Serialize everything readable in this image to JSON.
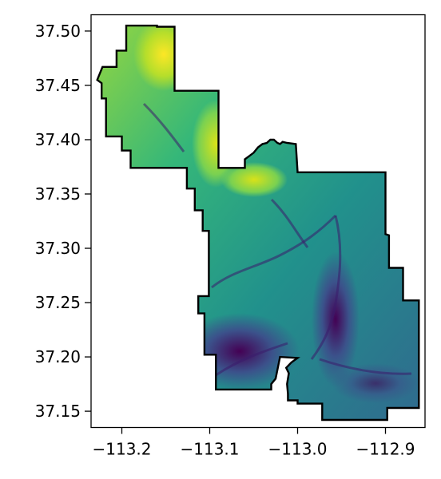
{
  "chart_data": {
    "type": "heatmap",
    "title": "",
    "xlabel": "",
    "ylabel": "",
    "colormap": "viridis",
    "xlim": [
      -113.235,
      -112.855
    ],
    "ylim": [
      37.135,
      37.515
    ],
    "x_ticks": [
      {
        "value": -113.2,
        "label": "−113.2"
      },
      {
        "value": -113.1,
        "label": "−113.1"
      },
      {
        "value": -113.0,
        "label": "−113.0"
      },
      {
        "value": -112.9,
        "label": "−112.9"
      }
    ],
    "y_ticks": [
      {
        "value": 37.5,
        "label": "37.50"
      },
      {
        "value": 37.45,
        "label": "37.45"
      },
      {
        "value": 37.4,
        "label": "37.40"
      },
      {
        "value": 37.35,
        "label": "37.35"
      },
      {
        "value": 37.3,
        "label": "37.30"
      },
      {
        "value": 37.25,
        "label": "37.25"
      },
      {
        "value": 37.2,
        "label": "37.20"
      },
      {
        "value": 37.15,
        "label": "37.15"
      }
    ],
    "boundary_outline_color": "#000000",
    "boundary": [
      [
        -113.195,
        37.505
      ],
      [
        -113.16,
        37.505
      ],
      [
        -113.16,
        37.504
      ],
      [
        -113.14,
        37.504
      ],
      [
        -113.14,
        37.445
      ],
      [
        -113.09,
        37.445
      ],
      [
        -113.09,
        37.374
      ],
      [
        -113.06,
        37.374
      ],
      [
        -113.06,
        37.382
      ],
      [
        -113.055,
        37.385
      ],
      [
        -113.05,
        37.388
      ],
      [
        -113.045,
        37.393
      ],
      [
        -113.04,
        37.396
      ],
      [
        -113.035,
        37.397
      ],
      [
        -113.031,
        37.4
      ],
      [
        -113.027,
        37.4
      ],
      [
        -113.023,
        37.397
      ],
      [
        -113.02,
        37.396
      ],
      [
        -113.017,
        37.398
      ],
      [
        -113.012,
        37.397
      ],
      [
        -113.002,
        37.396
      ],
      [
        -113.0,
        37.37
      ],
      [
        -112.9,
        37.37
      ],
      [
        -112.9,
        37.313
      ],
      [
        -112.896,
        37.312
      ],
      [
        -112.896,
        37.282
      ],
      [
        -112.88,
        37.282
      ],
      [
        -112.88,
        37.252
      ],
      [
        -112.862,
        37.252
      ],
      [
        -112.862,
        37.153
      ],
      [
        -112.898,
        37.153
      ],
      [
        -112.898,
        37.142
      ],
      [
        -112.972,
        37.142
      ],
      [
        -112.972,
        37.157
      ],
      [
        -113.0,
        37.157
      ],
      [
        -113.0,
        37.16
      ],
      [
        -113.011,
        37.16
      ],
      [
        -113.011,
        37.166
      ],
      [
        -113.012,
        37.175
      ],
      [
        -113.01,
        37.185
      ],
      [
        -113.013,
        37.19
      ],
      [
        -113.007,
        37.195
      ],
      [
        -113.0,
        37.199
      ],
      [
        -113.02,
        37.2
      ],
      [
        -113.025,
        37.18
      ],
      [
        -113.03,
        37.175
      ],
      [
        -113.03,
        37.17
      ],
      [
        -113.093,
        37.17
      ],
      [
        -113.093,
        37.202
      ],
      [
        -113.106,
        37.202
      ],
      [
        -113.106,
        37.24
      ],
      [
        -113.113,
        37.24
      ],
      [
        -113.113,
        37.256
      ],
      [
        -113.101,
        37.256
      ],
      [
        -113.101,
        37.316
      ],
      [
        -113.108,
        37.316
      ],
      [
        -113.108,
        37.335
      ],
      [
        -113.117,
        37.335
      ],
      [
        -113.117,
        37.355
      ],
      [
        -113.126,
        37.355
      ],
      [
        -113.126,
        37.374
      ],
      [
        -113.19,
        37.374
      ],
      [
        -113.19,
        37.39
      ],
      [
        -113.2,
        37.39
      ],
      [
        -113.2,
        37.403
      ],
      [
        -113.218,
        37.403
      ],
      [
        -113.218,
        37.438
      ],
      [
        -113.223,
        37.438
      ],
      [
        -113.223,
        37.452
      ],
      [
        -113.228,
        37.455
      ],
      [
        -113.222,
        37.467
      ],
      [
        -113.206,
        37.467
      ],
      [
        -113.206,
        37.482
      ],
      [
        -113.195,
        37.482
      ],
      [
        -113.195,
        37.505
      ]
    ]
  }
}
